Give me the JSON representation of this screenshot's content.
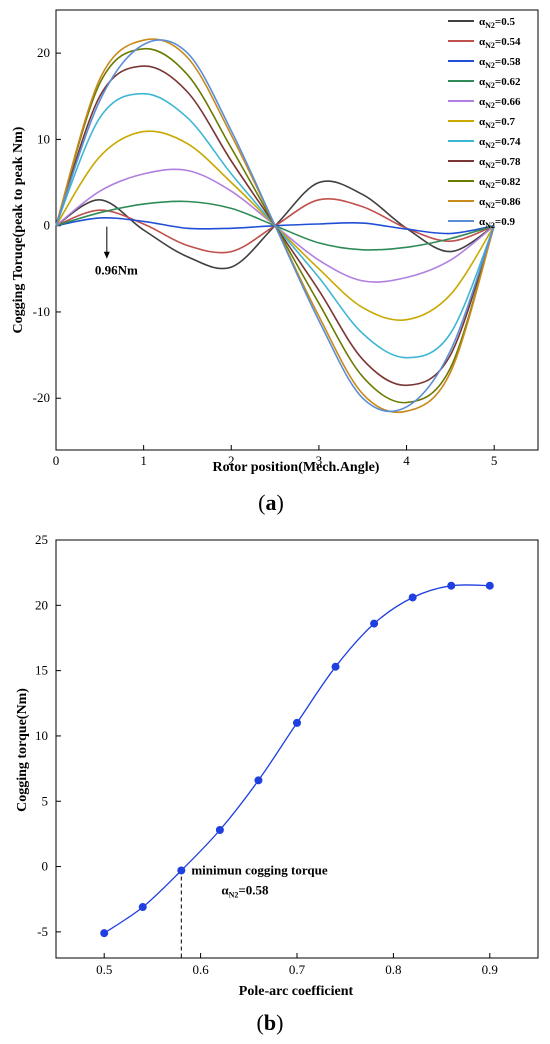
{
  "chart_data": [
    {
      "panel_label": "a",
      "type": "line",
      "xlabel": "Rotor position(Mech.Angle)",
      "ylabel": "Cogging Toruqe(peak to peak Nm)",
      "xlim": [
        0,
        5.5
      ],
      "ylim": [
        -26,
        25
      ],
      "xticks": [
        0,
        1,
        2,
        3,
        4,
        5
      ],
      "yticks": [
        -20,
        -10,
        0,
        10,
        20
      ],
      "grid": false,
      "legend_position": "top-right",
      "annotation": "0.96Nm",
      "x": [
        0,
        0.5,
        1.0,
        1.5,
        2.0,
        2.5,
        3.0,
        3.5,
        4.0,
        4.5,
        5.0
      ],
      "series": [
        {
          "name": "α",
          "subscript": "N2",
          "suffix": "=0.5",
          "color": "#404040",
          "values": [
            0,
            3.0,
            -0.5,
            -3.6,
            -4.8,
            0,
            5.0,
            3.6,
            -0.3,
            -3.0,
            0
          ]
        },
        {
          "name": "α",
          "subscript": "N2",
          "suffix": "=0.54",
          "color": "#c0504d",
          "values": [
            0,
            1.8,
            0.2,
            -2.3,
            -3.0,
            0,
            3.0,
            2.2,
            -0.3,
            -1.8,
            0
          ]
        },
        {
          "name": "α",
          "subscript": "N2",
          "suffix": "=0.58",
          "color": "#1f4fd6",
          "values": [
            0,
            0.9,
            0.5,
            -0.3,
            -0.3,
            0,
            0.2,
            0.3,
            -0.4,
            -0.9,
            0
          ]
        },
        {
          "name": "α",
          "subscript": "N2",
          "suffix": "=0.62",
          "color": "#2e8b57",
          "values": [
            0,
            1.5,
            2.5,
            2.8,
            2.0,
            0,
            -2.0,
            -2.8,
            -2.5,
            -1.5,
            0
          ]
        },
        {
          "name": "α",
          "subscript": "N2",
          "suffix": "=0.66",
          "color": "#b07fe0",
          "values": [
            0,
            4.0,
            6.0,
            6.4,
            4.0,
            0,
            -4.0,
            -6.4,
            -6.0,
            -4.0,
            0
          ]
        },
        {
          "name": "α",
          "subscript": "N2",
          "suffix": "=0.7",
          "color": "#c9a800",
          "values": [
            0,
            8.0,
            10.9,
            9.5,
            5.0,
            0,
            -5.0,
            -9.5,
            -10.9,
            -8.0,
            0
          ]
        },
        {
          "name": "α",
          "subscript": "N2",
          "suffix": "=0.74",
          "color": "#3fb7d4",
          "values": [
            0,
            12.5,
            15.3,
            12.5,
            6.0,
            0,
            -6.0,
            -12.5,
            -15.3,
            -12.5,
            0
          ]
        },
        {
          "name": "α",
          "subscript": "N2",
          "suffix": "=0.78",
          "color": "#7a3535",
          "values": [
            0,
            15.0,
            18.5,
            15.5,
            7.5,
            0,
            -7.5,
            -15.5,
            -18.5,
            -15.0,
            0
          ]
        },
        {
          "name": "α",
          "subscript": "N2",
          "suffix": "=0.82",
          "color": "#6b7a00",
          "values": [
            0,
            16.5,
            20.5,
            17.5,
            9.0,
            0,
            -9.0,
            -17.5,
            -20.5,
            -16.5,
            0
          ]
        },
        {
          "name": "α",
          "subscript": "N2",
          "suffix": "=0.86",
          "color": "#c88a1a",
          "values": [
            0,
            17.0,
            21.5,
            19.5,
            10.5,
            0,
            -10.5,
            -19.5,
            -21.5,
            -17.0,
            0
          ]
        },
        {
          "name": "α",
          "subscript": "N2",
          "suffix": "=0.9",
          "color": "#5b8ed6",
          "values": [
            0,
            14.5,
            21.0,
            20.0,
            11.0,
            0,
            -11.0,
            -20.0,
            -21.0,
            -14.5,
            0
          ]
        }
      ]
    },
    {
      "panel_label": "b",
      "type": "line",
      "xlabel": "Pole-arc coefficient",
      "ylabel": "Cogging torque(Nm)",
      "xlim": [
        0.45,
        0.95
      ],
      "ylim": [
        -7,
        25
      ],
      "xticks": [
        0.5,
        0.6,
        0.7,
        0.8,
        0.9
      ],
      "yticks": [
        -5,
        0,
        5,
        10,
        15,
        20,
        25
      ],
      "grid": false,
      "color": "#1f3fe0",
      "x": [
        0.5,
        0.54,
        0.58,
        0.62,
        0.66,
        0.7,
        0.74,
        0.78,
        0.82,
        0.86,
        0.9
      ],
      "values": [
        -5.1,
        -3.1,
        -0.3,
        2.8,
        6.6,
        11.0,
        15.3,
        18.6,
        20.6,
        21.5,
        21.5
      ],
      "annotation": {
        "text": "minimun cogging torque",
        "label": "α",
        "label_subscript": "N2",
        "label_suffix": "=0.58",
        "x": 0.58
      }
    }
  ]
}
